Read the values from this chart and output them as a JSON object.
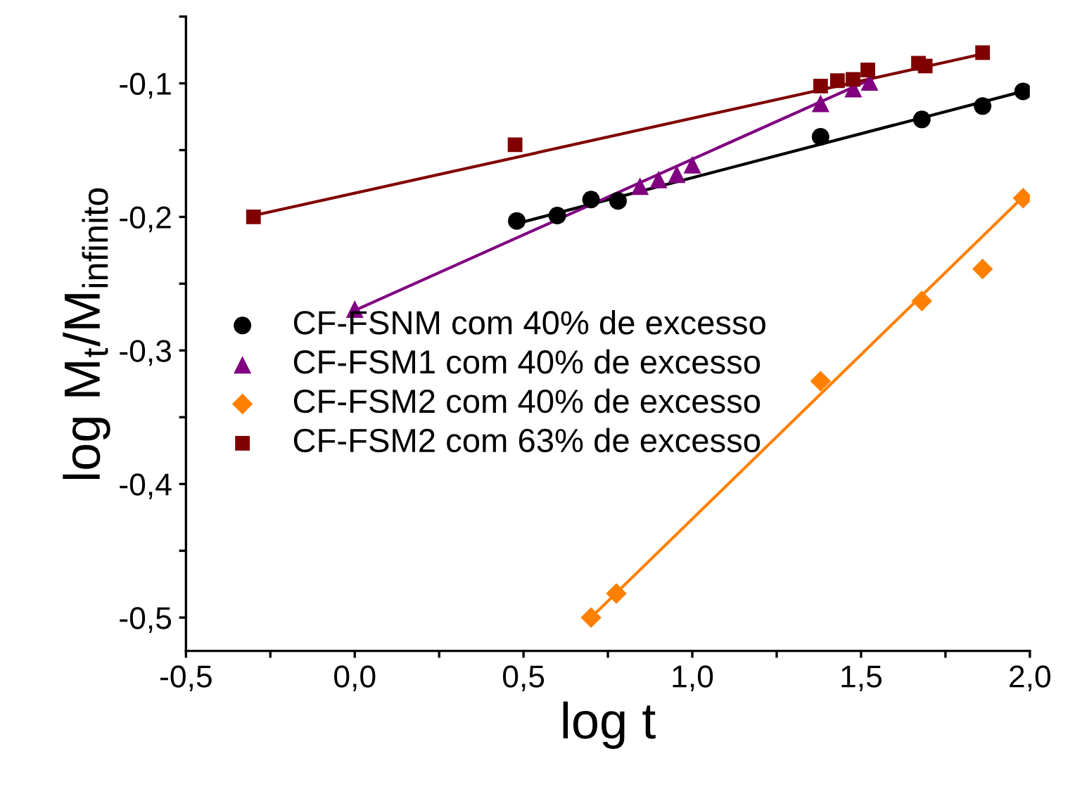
{
  "chart_data": {
    "type": "scatter",
    "xlabel": "log t",
    "ylabel": "log M$_{t}$/M$_{infinito}$",
    "xlim": [
      -0.5,
      2.0
    ],
    "ylim": [
      -0.525,
      -0.05
    ],
    "xticks": [
      {
        "value": -0.5,
        "label": "-0,5"
      },
      {
        "value": -0.25,
        "label": null
      },
      {
        "value": 0.0,
        "label": "0,0"
      },
      {
        "value": 0.25,
        "label": null
      },
      {
        "value": 0.5,
        "label": "0,5"
      },
      {
        "value": 0.75,
        "label": null
      },
      {
        "value": 1.0,
        "label": "1,0"
      },
      {
        "value": 1.25,
        "label": null
      },
      {
        "value": 1.5,
        "label": "1,5"
      },
      {
        "value": 1.75,
        "label": null
      },
      {
        "value": 2.0,
        "label": "2,0"
      }
    ],
    "yticks": [
      {
        "value": -0.5,
        "label": "-0,5"
      },
      {
        "value": -0.45,
        "label": null
      },
      {
        "value": -0.4,
        "label": "-0,4"
      },
      {
        "value": -0.35,
        "label": null
      },
      {
        "value": -0.3,
        "label": "-0,3"
      },
      {
        "value": -0.25,
        "label": null
      },
      {
        "value": -0.2,
        "label": "-0,2"
      },
      {
        "value": -0.15,
        "label": null
      },
      {
        "value": -0.1,
        "label": "-0,1"
      },
      {
        "value": -0.05,
        "label": null
      }
    ],
    "grid": false,
    "legend": "center left",
    "series": [
      {
        "name": "CF-FSNM com 40% de excesso",
        "color": "#000000",
        "marker": "circle",
        "x": [
          0.48,
          0.6,
          0.7,
          0.78,
          1.38,
          1.68,
          1.86,
          1.98
        ],
        "values": [
          -0.203,
          -0.199,
          -0.187,
          -0.188,
          -0.14,
          -0.127,
          -0.117,
          -0.106
        ]
      },
      {
        "name": "CF-FSM1 com 40% de excesso",
        "color": "#800080",
        "marker": "triangle",
        "x": [
          0.0,
          0.845,
          0.9,
          0.954,
          1.0,
          1.38,
          1.477,
          1.525
        ],
        "values": [
          -0.269,
          -0.177,
          -0.172,
          -0.168,
          -0.161,
          -0.115,
          -0.104,
          -0.099
        ]
      },
      {
        "name": "CF-FSM2 com 40% de excesso",
        "color": "#ff8000",
        "marker": "diamond",
        "x": [
          0.7,
          0.775,
          1.38,
          1.68,
          1.86,
          1.98
        ],
        "values": [
          -0.5,
          -0.482,
          -0.323,
          -0.263,
          -0.239,
          -0.186
        ]
      },
      {
        "name": "CF-FSM2 com 63% de excesso",
        "color": "#800000",
        "marker": "square",
        "x": [
          -0.3,
          0.475,
          1.38,
          1.43,
          1.476,
          1.52,
          1.67,
          1.69,
          1.86
        ],
        "values": [
          -0.2,
          -0.146,
          -0.102,
          -0.098,
          -0.097,
          -0.09,
          -0.085,
          -0.087,
          -0.077
        ]
      },
      {
        "type": "line",
        "color": "#000000",
        "x": [
          0.48,
          1.98
        ],
        "values": [
          -0.205,
          -0.106
        ]
      },
      {
        "type": "line",
        "color": "#800080",
        "x": [
          0.0,
          1.52
        ],
        "values": [
          -0.27,
          -0.098
        ]
      },
      {
        "type": "line",
        "color": "#ff8000",
        "x": [
          0.7,
          1.98
        ],
        "values": [
          -0.5,
          -0.185
        ]
      },
      {
        "type": "line",
        "color": "#800000",
        "x": [
          -0.3,
          1.86
        ],
        "values": [
          -0.199,
          -0.078
        ]
      }
    ]
  }
}
